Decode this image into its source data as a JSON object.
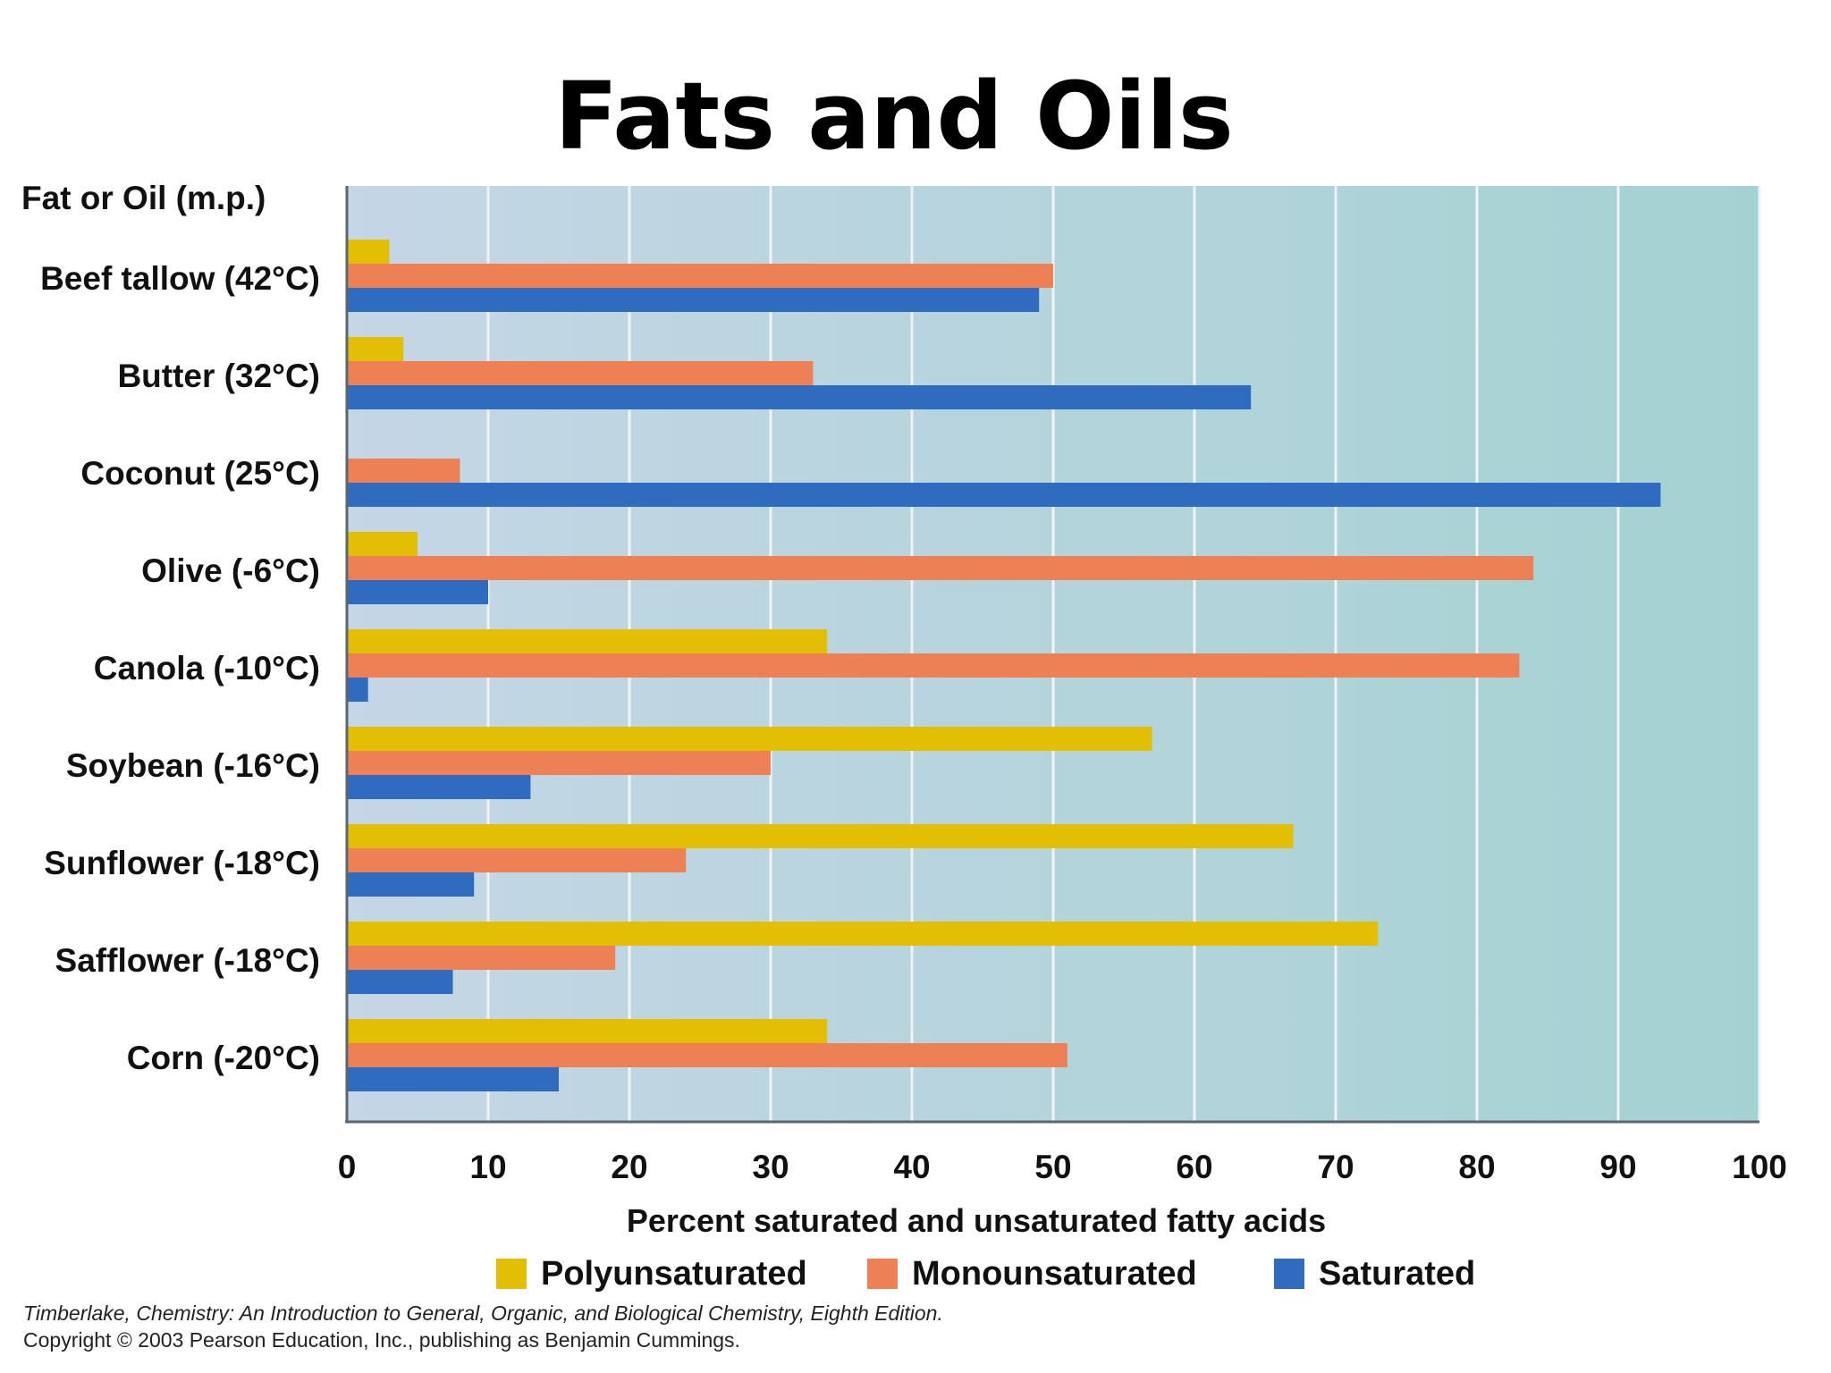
{
  "title": "Fats and Oils",
  "chart_data": {
    "type": "bar",
    "orientation": "horizontal",
    "y_header": "Fat or Oil (m.p.)",
    "categories": [
      "Beef tallow (42°C)",
      "Butter (32°C)",
      "Coconut (25°C)",
      "Olive (-6°C)",
      "Canola (-10°C)",
      "Soybean (-16°C)",
      "Sunflower (-18°C)",
      "Safflower (-18°C)",
      "Corn (-20°C)"
    ],
    "series": [
      {
        "name": "Polyunsaturated",
        "color": "#e2be04",
        "values": [
          3,
          4,
          0,
          5,
          34,
          57,
          67,
          73,
          34
        ]
      },
      {
        "name": "Monounsaturated",
        "color": "#ee8055",
        "values": [
          50,
          33,
          8,
          84,
          83,
          30,
          24,
          19,
          51
        ]
      },
      {
        "name": "Saturated",
        "color": "#2f6bbf",
        "values": [
          49,
          64,
          93,
          10,
          1.5,
          13,
          9,
          7.5,
          15
        ]
      }
    ],
    "xlim": [
      0,
      100
    ],
    "xticks": [
      0,
      10,
      20,
      30,
      40,
      50,
      60,
      70,
      80,
      90,
      100
    ],
    "xlabel": "Percent saturated and unsaturated fatty acids",
    "grid": true,
    "legend_position": "bottom"
  },
  "credits": {
    "line1": "Timberlake, Chemistry: An Introduction to General, Organic, and Biological Chemistry, Eighth Edition.",
    "line2": "Copyright © 2003 Pearson Education, Inc., publishing as Benjamin Cummings."
  }
}
